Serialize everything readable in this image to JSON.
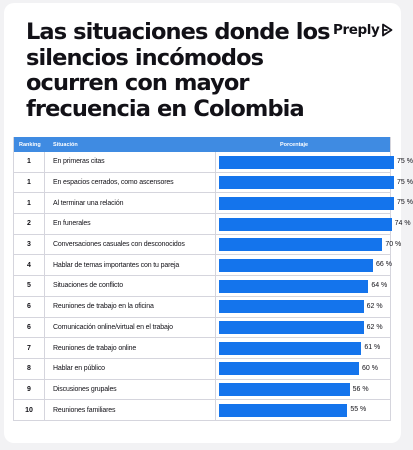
{
  "title": "Las situaciones donde los silencios incómodos ocurren con mayor frecuencia en Colombia",
  "logo": {
    "text": "Preply",
    "icon": "preply-arrow-icon"
  },
  "colors": {
    "header": "#3f8be2",
    "bar": "#1474ec",
    "background": "#f2f2f4"
  },
  "table": {
    "headers": {
      "rank": "Ranking",
      "situation": "Situación",
      "percent": "Porcentaje"
    }
  },
  "chart_data": {
    "type": "bar",
    "orientation": "horizontal",
    "title": "Las situaciones donde los silencios incómodos ocurren con mayor frecuencia en Colombia",
    "xlim": [
      0,
      100
    ],
    "unit": "%",
    "rows": [
      {
        "rank": "1",
        "situation": "En primeras citas",
        "value": 75,
        "label": "75 %"
      },
      {
        "rank": "1",
        "situation": "En espacios cerrados, como ascensores",
        "value": 75,
        "label": "75 %"
      },
      {
        "rank": "1",
        "situation": "Al terminar una relación",
        "value": 75,
        "label": "75 %"
      },
      {
        "rank": "2",
        "situation": "En funerales",
        "value": 74,
        "label": "74 %"
      },
      {
        "rank": "3",
        "situation": "Conversaciones casuales con desconocidos",
        "value": 70,
        "label": "70 %"
      },
      {
        "rank": "4",
        "situation": "Hablar de temas importantes con tu pareja",
        "value": 66,
        "label": "66 %"
      },
      {
        "rank": "5",
        "situation": "Situaciones de conflicto",
        "value": 64,
        "label": "64 %"
      },
      {
        "rank": "6",
        "situation": "Reuniones de trabajo en la oficina",
        "value": 62,
        "label": "62 %"
      },
      {
        "rank": "6",
        "situation": "Comunicación online/virtual en el trabajo",
        "value": 62,
        "label": "62 %"
      },
      {
        "rank": "7",
        "situation": "Reuniones de trabajo online",
        "value": 61,
        "label": "61 %"
      },
      {
        "rank": "8",
        "situation": "Hablar en público",
        "value": 60,
        "label": "60 %"
      },
      {
        "rank": "9",
        "situation": "Discusiones grupales",
        "value": 56,
        "label": "56 %"
      },
      {
        "rank": "10",
        "situation": "Reuniones familiares",
        "value": 55,
        "label": "55 %"
      }
    ]
  }
}
